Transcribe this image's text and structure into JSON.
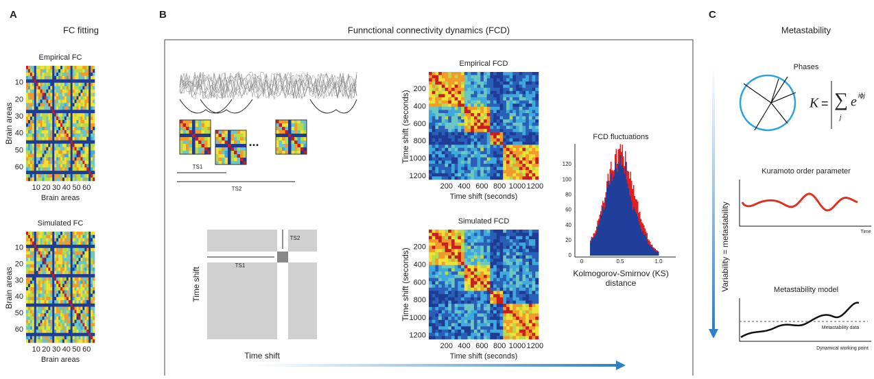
{
  "panel_a": {
    "letter": "A",
    "title": "FC fitting",
    "empirical": {
      "title": "Empirical FC",
      "yticks": [
        "10",
        "20",
        "30",
        "40",
        "50",
        "60"
      ],
      "xticks": [
        "10",
        "20",
        "30",
        "40",
        "50",
        "60"
      ],
      "ylabel": "Brain areas",
      "xlabel": "Brain areas"
    },
    "simulated": {
      "title": "Simulated FC",
      "yticks": [
        "10",
        "20",
        "30",
        "40",
        "50",
        "60"
      ],
      "xticks": [
        "10",
        "20",
        "30",
        "40",
        "50",
        "60"
      ],
      "ylabel": "Brain areas",
      "xlabel": "Brain areas"
    }
  },
  "panel_b": {
    "letter": "B",
    "title": "Funnctional connectivity dynamics (FCD)",
    "schematic": {
      "ellipsis": "...",
      "ts1": "TS1",
      "ts2": "TS2"
    },
    "matrix_schematic": {
      "ts1": "TS1",
      "ts2": "TS2",
      "ylabel": "Time shift",
      "xlabel": "Time shift"
    },
    "empirical": {
      "title": "Empirical FCD",
      "yticks": [
        "200",
        "400",
        "600",
        "800",
        "1000",
        "1200"
      ],
      "xticks": [
        "200",
        "400",
        "600",
        "800",
        "1000",
        "1200"
      ],
      "ylabel": "Time shift (seconds)",
      "xlabel": "Time shift (seconds)"
    },
    "simulated": {
      "title": "Simulated FCD",
      "yticks": [
        "200",
        "400",
        "600",
        "800",
        "1000",
        "1200"
      ],
      "xticks": [
        "200",
        "400",
        "600",
        "800",
        "1000",
        "1200"
      ],
      "ylabel": "Time shift (seconds)",
      "xlabel": "Time shift (seconds)"
    },
    "histogram": {
      "title": "FCD fluctuations",
      "yticks": [
        "0",
        "20",
        "40",
        "60",
        "80",
        "100",
        "120"
      ],
      "xticks": [
        "0",
        "0.5",
        "1.0"
      ],
      "xlabel": [
        "Kolmogorov-Smirnov (KS)",
        "distance"
      ]
    }
  },
  "panel_c": {
    "letter": "C",
    "title": "Metastability",
    "arrow_label": "Variability = metastability",
    "phases": {
      "title": "Phases",
      "formula": {
        "k": "K",
        "eq": "=",
        "sum": "∑",
        "sub": "j",
        "e": "e",
        "exp": "iϕj"
      }
    },
    "kuramoto": {
      "title": "Kuramoto order parameter",
      "xlabel": "Time"
    },
    "model": {
      "title": "Metastability model",
      "line_label": "Metastability data",
      "xlabel": "Dynamical working point"
    }
  }
}
